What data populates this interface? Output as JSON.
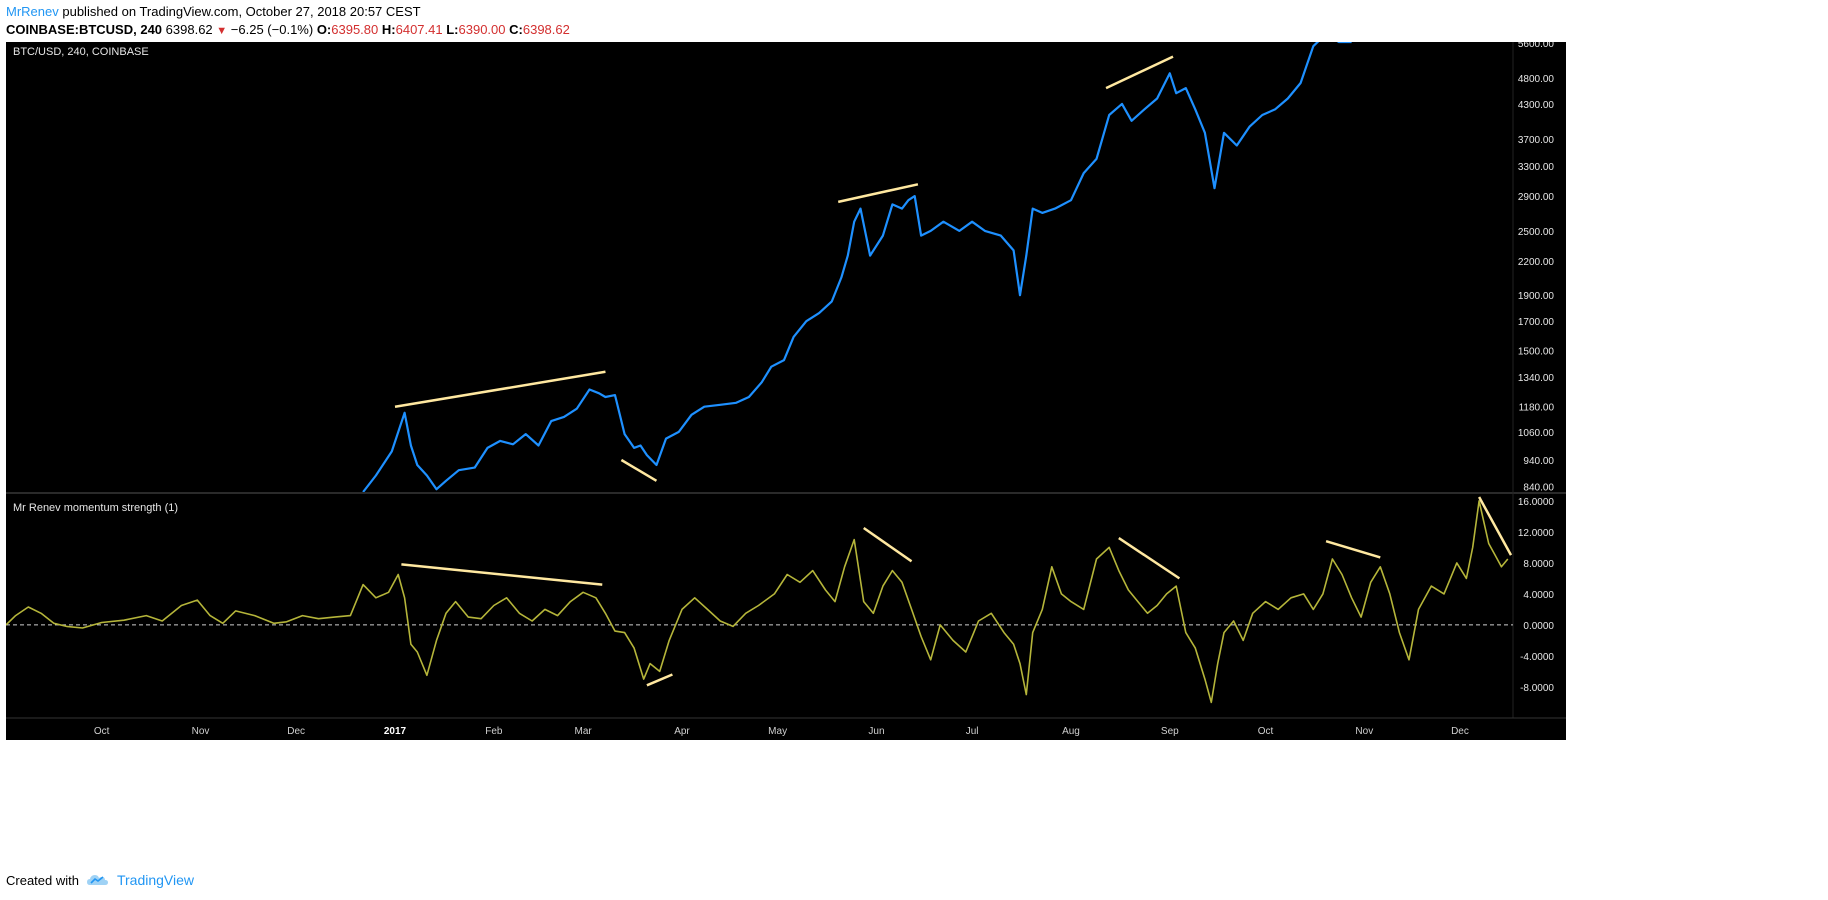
{
  "header": {
    "author": "MrRenev",
    "published": " published on TradingView.com, October 27, 2018 20:57 CEST",
    "symbol": "COINBASE:BTCUSD, 240",
    "last": "6398.62",
    "change": "−6.25 (−0.1%)",
    "o_label": "O:",
    "o": "6395.80",
    "h_label": "H:",
    "h": "6407.41",
    "l_label": "L:",
    "l": "6390.00",
    "c_label": "C:",
    "c": "6398.62"
  },
  "footer": {
    "created_with": "Created with",
    "brand": "TradingView"
  },
  "colors": {
    "price": "#1e90ff",
    "momentum": "#b5b53a",
    "trendline": "#ffe8a0",
    "background": "#000000"
  },
  "chart_data": [
    {
      "type": "line",
      "title": "BTC/USD, 240, COINBASE",
      "scale": "log",
      "ylim": [
        820,
        5600
      ],
      "y_ticks": [
        "5600.00",
        "4800.00",
        "4300.00",
        "3700.00",
        "3300.00",
        "2900.00",
        "2500.00",
        "2200.00",
        "1900.00",
        "1700.00",
        "1500.00",
        "1340.00",
        "1180.00",
        "1060.00",
        "940.00",
        "840.00"
      ],
      "x_ticks": [
        "Oct",
        "Nov",
        "Dec",
        "2017",
        "Feb",
        "Mar",
        "Apr",
        "May",
        "Jun",
        "Jul",
        "Aug",
        "Sep",
        "Oct",
        "Nov",
        "Dec"
      ],
      "x_start": "2016-09-01",
      "x_end": "2017-12-17",
      "series": [
        {
          "x": [
            "2016-12-22",
            "2016-12-26",
            "2016-12-31",
            "2017-01-04",
            "2017-01-06",
            "2017-01-08",
            "2017-01-11",
            "2017-01-14",
            "2017-01-17",
            "2017-01-21",
            "2017-01-26",
            "2017-01-30",
            "2017-02-03",
            "2017-02-07",
            "2017-02-11",
            "2017-02-15",
            "2017-02-19",
            "2017-02-23",
            "2017-02-27",
            "2017-03-03",
            "2017-03-06",
            "2017-03-08",
            "2017-03-11",
            "2017-03-14",
            "2017-03-17",
            "2017-03-19",
            "2017-03-21",
            "2017-03-24",
            "2017-03-27",
            "2017-03-31",
            "2017-04-04",
            "2017-04-08",
            "2017-04-13",
            "2017-04-18",
            "2017-04-22",
            "2017-04-26",
            "2017-04-29",
            "2017-05-03",
            "2017-05-06",
            "2017-05-10",
            "2017-05-14",
            "2017-05-18",
            "2017-05-21",
            "2017-05-23",
            "2017-05-25",
            "2017-05-27",
            "2017-05-30",
            "2017-06-03",
            "2017-06-06",
            "2017-06-09",
            "2017-06-11",
            "2017-06-13",
            "2017-06-15",
            "2017-06-18",
            "2017-06-22",
            "2017-06-27",
            "2017-07-01",
            "2017-07-05",
            "2017-07-10",
            "2017-07-14",
            "2017-07-16",
            "2017-07-18",
            "2017-07-20",
            "2017-07-23",
            "2017-07-27",
            "2017-08-01",
            "2017-08-05",
            "2017-08-09",
            "2017-08-13",
            "2017-08-15",
            "2017-08-17",
            "2017-08-20",
            "2017-08-24",
            "2017-08-28",
            "2017-09-01",
            "2017-09-03",
            "2017-09-06",
            "2017-09-09",
            "2017-09-12",
            "2017-09-15",
            "2017-09-18",
            "2017-09-22",
            "2017-09-26",
            "2017-09-30",
            "2017-10-04",
            "2017-10-08",
            "2017-10-12",
            "2017-10-16",
            "2017-10-20",
            "2017-10-24",
            "2017-10-28"
          ],
          "values": [
            820,
            880,
            975,
            1150,
            1000,
            920,
            880,
            830,
            860,
            900,
            910,
            990,
            1020,
            1005,
            1050,
            1000,
            1110,
            1130,
            1170,
            1270,
            1250,
            1230,
            1240,
            1050,
            990,
            1000,
            960,
            920,
            1030,
            1060,
            1140,
            1180,
            1190,
            1200,
            1230,
            1310,
            1400,
            1440,
            1590,
            1700,
            1760,
            1850,
            2050,
            2250,
            2600,
            2750,
            2250,
            2450,
            2800,
            2750,
            2850,
            2900,
            2450,
            2500,
            2600,
            2500,
            2600,
            2500,
            2450,
            2300,
            1900,
            2250,
            2750,
            2700,
            2750,
            2850,
            3200,
            3400,
            4100,
            4200,
            4300,
            4000,
            4200,
            4400,
            4900,
            4500,
            4600,
            4200,
            3800,
            3000,
            3800,
            3600,
            3900,
            4100,
            4200,
            4400,
            4700,
            5500,
            5800,
            5600,
            5600
          ]
        }
      ],
      "trendlines": [
        {
          "from": [
            "2017-01-01",
            1180
          ],
          "to": [
            "2017-03-08",
            1370
          ]
        },
        {
          "from": [
            "2017-03-13",
            940
          ],
          "to": [
            "2017-03-24",
            860
          ]
        },
        {
          "from": [
            "2017-05-20",
            2830
          ],
          "to": [
            "2017-06-14",
            3050
          ]
        },
        {
          "from": [
            "2017-08-12",
            4600
          ],
          "to": [
            "2017-09-02",
            5260
          ]
        }
      ]
    },
    {
      "type": "line",
      "title": "Mr Renev momentum strength (1)",
      "ylim": [
        -11.5,
        16.5
      ],
      "y_ticks": [
        "16.0000",
        "12.0000",
        "8.0000",
        "4.0000",
        "0.0000",
        "-4.0000",
        "-8.0000"
      ],
      "zero_line": 0,
      "series": [
        {
          "x": [
            "2016-09-01",
            "2016-09-04",
            "2016-09-08",
            "2016-09-12",
            "2016-09-16",
            "2016-09-20",
            "2016-09-25",
            "2016-10-01",
            "2016-10-08",
            "2016-10-15",
            "2016-10-20",
            "2016-10-26",
            "2016-10-31",
            "2016-11-04",
            "2016-11-08",
            "2016-11-12",
            "2016-11-18",
            "2016-11-24",
            "2016-11-28",
            "2016-12-03",
            "2016-12-08",
            "2016-12-13",
            "2016-12-18",
            "2016-12-22",
            "2016-12-26",
            "2016-12-30",
            "2017-01-02",
            "2017-01-04",
            "2017-01-06",
            "2017-01-08",
            "2017-01-11",
            "2017-01-14",
            "2017-01-17",
            "2017-01-20",
            "2017-01-24",
            "2017-01-28",
            "2017-02-01",
            "2017-02-05",
            "2017-02-09",
            "2017-02-13",
            "2017-02-17",
            "2017-02-21",
            "2017-02-25",
            "2017-03-01",
            "2017-03-05",
            "2017-03-08",
            "2017-03-11",
            "2017-03-14",
            "2017-03-17",
            "2017-03-20",
            "2017-03-22",
            "2017-03-25",
            "2017-03-28",
            "2017-04-01",
            "2017-04-05",
            "2017-04-09",
            "2017-04-13",
            "2017-04-17",
            "2017-04-21",
            "2017-04-25",
            "2017-04-30",
            "2017-05-04",
            "2017-05-08",
            "2017-05-12",
            "2017-05-16",
            "2017-05-19",
            "2017-05-22",
            "2017-05-25",
            "2017-05-28",
            "2017-05-31",
            "2017-06-03",
            "2017-06-06",
            "2017-06-09",
            "2017-06-12",
            "2017-06-15",
            "2017-06-18",
            "2017-06-21",
            "2017-06-25",
            "2017-06-29",
            "2017-07-03",
            "2017-07-07",
            "2017-07-11",
            "2017-07-14",
            "2017-07-16",
            "2017-07-18",
            "2017-07-20",
            "2017-07-23",
            "2017-07-26",
            "2017-07-29",
            "2017-08-01",
            "2017-08-05",
            "2017-08-09",
            "2017-08-13",
            "2017-08-16",
            "2017-08-19",
            "2017-08-22",
            "2017-08-25",
            "2017-08-28",
            "2017-08-31",
            "2017-09-03",
            "2017-09-06",
            "2017-09-09",
            "2017-09-12",
            "2017-09-14",
            "2017-09-16",
            "2017-09-18",
            "2017-09-21",
            "2017-09-24",
            "2017-09-27",
            "2017-10-01",
            "2017-10-05",
            "2017-10-09",
            "2017-10-13",
            "2017-10-16",
            "2017-10-19",
            "2017-10-22",
            "2017-10-25",
            "2017-10-28",
            "2017-10-31",
            "2017-11-03",
            "2017-11-06",
            "2017-11-09",
            "2017-11-12",
            "2017-11-15",
            "2017-11-18",
            "2017-11-22",
            "2017-11-26",
            "2017-11-30",
            "2017-12-03",
            "2017-12-05",
            "2017-12-07",
            "2017-12-10",
            "2017-12-12",
            "2017-12-14",
            "2017-12-16"
          ],
          "values": [
            0,
            1.2,
            2.3,
            1.5,
            0.2,
            -0.2,
            -0.4,
            0.3,
            0.6,
            1.2,
            0.5,
            2.5,
            3.2,
            1.2,
            0.2,
            1.8,
            1.2,
            0.2,
            0.4,
            1.2,
            0.8,
            1.0,
            1.2,
            5.2,
            3.5,
            4.2,
            6.5,
            3.5,
            -2.5,
            -3.5,
            -6.5,
            -2.0,
            1.5,
            3.0,
            1.0,
            0.8,
            2.5,
            3.5,
            1.5,
            0.5,
            2.0,
            1.2,
            3.0,
            4.2,
            3.5,
            1.5,
            -0.8,
            -1.0,
            -3.0,
            -7.0,
            -5.0,
            -6.0,
            -2.0,
            2.0,
            3.5,
            2.0,
            0.5,
            -0.2,
            1.5,
            2.5,
            4.0,
            6.5,
            5.5,
            7.0,
            4.5,
            3.0,
            7.5,
            11.0,
            3.0,
            1.5,
            5.0,
            7.0,
            5.5,
            2.0,
            -1.5,
            -4.5,
            0.0,
            -2.0,
            -3.5,
            0.5,
            1.5,
            -1.0,
            -2.5,
            -5.0,
            -9.0,
            -1.0,
            2.0,
            7.5,
            4.0,
            3.0,
            2.0,
            8.5,
            10.0,
            7.0,
            4.5,
            3.0,
            1.5,
            2.5,
            4.0,
            5.0,
            -1.0,
            -3.0,
            -7.0,
            -10.0,
            -5.0,
            -1.0,
            0.5,
            -2.0,
            1.5,
            3.0,
            2.0,
            3.5,
            4.0,
            2.0,
            4.0,
            8.5,
            6.5,
            3.5,
            1.0,
            5.5,
            7.5,
            4.0,
            -1.0,
            -4.5,
            2.0,
            5.0,
            4.0,
            8.0,
            6.0,
            10.0,
            16.0,
            10.5,
            9.0,
            7.5,
            8.5
          ]
        }
      ],
      "trendlines": [
        {
          "from": [
            "2017-01-03",
            7.8
          ],
          "to": [
            "2017-03-07",
            5.2
          ]
        },
        {
          "from": [
            "2017-03-21",
            -7.8
          ],
          "to": [
            "2017-03-29",
            -6.4
          ]
        },
        {
          "from": [
            "2017-05-28",
            12.5
          ],
          "to": [
            "2017-06-12",
            8.2
          ]
        },
        {
          "from": [
            "2017-08-16",
            11.2
          ],
          "to": [
            "2017-09-04",
            6.0
          ]
        },
        {
          "from": [
            "2017-10-20",
            10.8
          ],
          "to": [
            "2017-11-06",
            8.7
          ]
        },
        {
          "from": [
            "2017-12-07",
            16.5
          ],
          "to": [
            "2017-12-17",
            9.0
          ]
        }
      ]
    }
  ]
}
